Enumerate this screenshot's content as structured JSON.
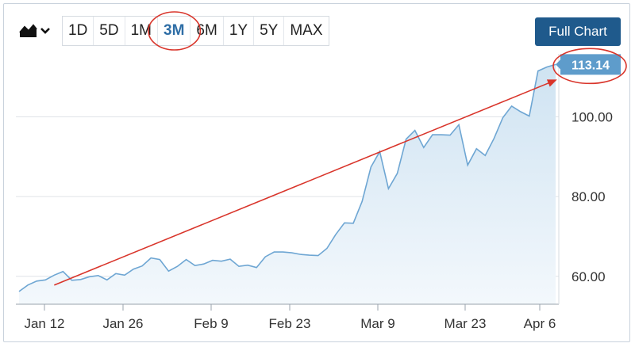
{
  "toolbar": {
    "chart_type_icon": "area-chart-icon",
    "ranges": [
      "1D",
      "5D",
      "1M",
      "3M",
      "6M",
      "1Y",
      "5Y",
      "MAX"
    ],
    "active_range": "3M"
  },
  "full_chart_label": "Full Chart",
  "colors": {
    "line": "#6ea6d3",
    "area_top": "#cfe3f2",
    "area_bottom": "#f3f8fc",
    "price_badge": "#5e9ccb",
    "annotation": "#d9352b",
    "button": "#1f5a8c"
  },
  "chart_data": {
    "type": "area",
    "x_ticks": [
      "Jan 12",
      "Jan 26",
      "Feb 9",
      "Feb 23",
      "Mar 9",
      "Mar 23",
      "Apr 6"
    ],
    "y_ticks": [
      "60.00",
      "80.00",
      "100.00"
    ],
    "ylim": [
      53,
      115
    ],
    "last_price": "113.14",
    "grid": true,
    "y_axis_position": "right",
    "series": [
      {
        "values": [
          56.2,
          57.8,
          58.8,
          59.1,
          60.3,
          61.2,
          59.0,
          59.2,
          59.9,
          60.2,
          59.1,
          60.7,
          60.3,
          61.8,
          62.6,
          64.6,
          64.2,
          61.3,
          62.5,
          64.2,
          62.7,
          63.1,
          64.0,
          63.8,
          64.3,
          62.5,
          62.8,
          62.2,
          64.9,
          66.1,
          66.1,
          65.9,
          65.5,
          65.3,
          65.2,
          67.0,
          70.5,
          73.4,
          73.3,
          78.8,
          87.4,
          91.3,
          82.0,
          85.8,
          94.4,
          96.6,
          92.3,
          95.5,
          95.5,
          95.4,
          98.0,
          87.9,
          92.0,
          90.3,
          94.6,
          99.8,
          102.7,
          101.3,
          100.2,
          111.5,
          112.5,
          113.14
        ]
      }
    ]
  },
  "annotations": {
    "trend_line": {
      "from": {
        "x_index": 4,
        "y": 57.8
      },
      "to": {
        "x_index": 61,
        "y": 109.2
      }
    },
    "circled": [
      "active-range-3m",
      "last-price-badge"
    ]
  }
}
